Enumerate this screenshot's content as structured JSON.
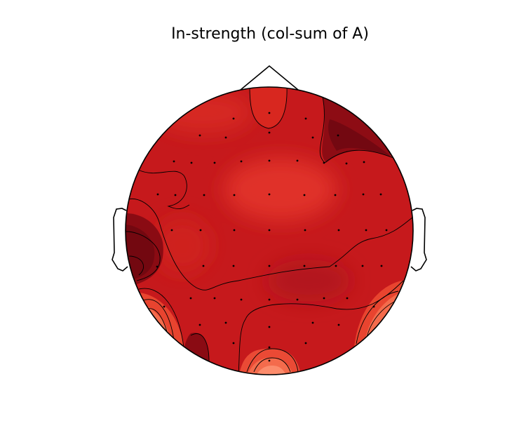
{
  "chart_data": {
    "type": "topomap",
    "title": "In-strength (col-sum of A)",
    "colormap": "Reds",
    "colors": {
      "base": "#c6191c",
      "darkest": "#6e0810",
      "lightest": "#fc8c6c",
      "outline": "#000000",
      "contour": "#000000"
    },
    "regions": [
      {
        "name": "frontal-right",
        "level": 0.92
      },
      {
        "name": "temporal-left",
        "level": 0.95
      },
      {
        "name": "occipital-left-inner",
        "level": 0.88
      },
      {
        "name": "frontal-center",
        "level": 0.55
      },
      {
        "name": "occipital-center",
        "level": 0.32
      },
      {
        "name": "temporal-left-lower",
        "level": 0.3
      },
      {
        "name": "temporal-right-lower",
        "level": 0.3
      }
    ]
  }
}
